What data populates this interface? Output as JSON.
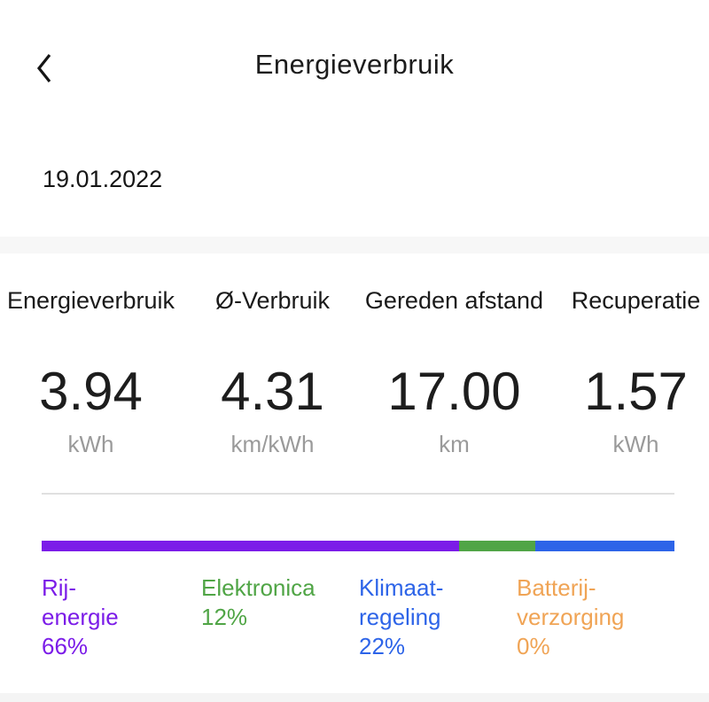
{
  "header": {
    "title": "Energieverbruik",
    "back_icon": "chevron-left"
  },
  "date": "19.01.2022",
  "stats": [
    {
      "label": "Energieverbruik",
      "value": "3.94",
      "unit": "kWh"
    },
    {
      "label": "Ø-Verbruik",
      "value": "4.31",
      "unit": "km/kWh"
    },
    {
      "label": "Gereden afstand",
      "value": "17.00",
      "unit": "km"
    },
    {
      "label": "Recuperatie",
      "value": "1.57",
      "unit": "kWh"
    }
  ],
  "usage_breakdown": {
    "type": "stacked-bar",
    "segments": [
      {
        "lines": [
          "Rij-",
          "energie",
          "66%"
        ],
        "percent": 66,
        "color": "#7B1CE8"
      },
      {
        "lines": [
          "Elektronica",
          "12%"
        ],
        "percent": 12,
        "color": "#50A546"
      },
      {
        "lines": [
          "Klimaat-",
          "regeling",
          "22%"
        ],
        "percent": 22,
        "color": "#2D64E8"
      },
      {
        "lines": [
          "Batterij-",
          "verzorging",
          "0%"
        ],
        "percent": 0,
        "color": "#F0A455"
      }
    ]
  }
}
